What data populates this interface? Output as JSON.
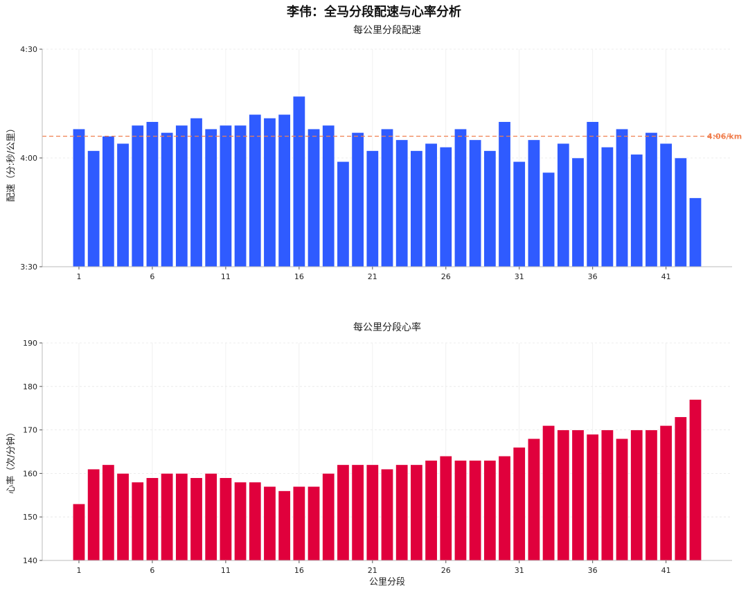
{
  "figure": {
    "title": "李伟：全马分段配速与心率分析"
  },
  "chart_data": [
    {
      "type": "bar",
      "title": "每公里分段配速",
      "xlabel": "",
      "ylabel": "配速（分:秒/公里）",
      "x": [
        1,
        2,
        3,
        4,
        5,
        6,
        7,
        8,
        9,
        10,
        11,
        12,
        13,
        14,
        15,
        16,
        17,
        18,
        19,
        20,
        21,
        22,
        23,
        24,
        25,
        26,
        27,
        28,
        29,
        30,
        31,
        32,
        33,
        34,
        35,
        36,
        37,
        38,
        39,
        40,
        41,
        42,
        43
      ],
      "xticks": [
        "1",
        "6",
        "11",
        "16",
        "21",
        "26",
        "31",
        "36",
        "41"
      ],
      "values_seconds": [
        248,
        242,
        246,
        244,
        249,
        250,
        247,
        249,
        251,
        248,
        249,
        249,
        252,
        251,
        252,
        257,
        248,
        249,
        239,
        247,
        242,
        248,
        245,
        242,
        244,
        243,
        248,
        245,
        242,
        250,
        239,
        245,
        236,
        244,
        240,
        250,
        243,
        248,
        241,
        247,
        244,
        240,
        229
      ],
      "ylim_seconds": [
        210,
        270
      ],
      "yticks": [
        "3:30",
        "4:00",
        "4:30"
      ],
      "reference_line": {
        "value_seconds": 246,
        "label": "4:06/km",
        "color": "#f07f4f"
      },
      "bar_color": "#2f5bff",
      "grid": true
    },
    {
      "type": "bar",
      "title": "每公里分段心率",
      "xlabel": "公里分段",
      "ylabel": "心率（次/分钟）",
      "x": [
        1,
        2,
        3,
        4,
        5,
        6,
        7,
        8,
        9,
        10,
        11,
        12,
        13,
        14,
        15,
        16,
        17,
        18,
        19,
        20,
        21,
        22,
        23,
        24,
        25,
        26,
        27,
        28,
        29,
        30,
        31,
        32,
        33,
        34,
        35,
        36,
        37,
        38,
        39,
        40,
        41,
        42,
        43
      ],
      "xticks": [
        "1",
        "6",
        "11",
        "16",
        "21",
        "26",
        "31",
        "36",
        "41"
      ],
      "values": [
        153,
        161,
        162,
        160,
        158,
        159,
        160,
        160,
        159,
        160,
        159,
        158,
        158,
        157,
        156,
        157,
        157,
        160,
        162,
        162,
        162,
        161,
        162,
        162,
        163,
        164,
        163,
        163,
        163,
        164,
        166,
        168,
        171,
        170,
        170,
        169,
        170,
        168,
        170,
        170,
        171,
        173,
        177
      ],
      "ylim": [
        140,
        190
      ],
      "yticks": [
        "140",
        "150",
        "160",
        "170",
        "180",
        "190"
      ],
      "bar_color": "#e0003c",
      "grid": true
    }
  ]
}
